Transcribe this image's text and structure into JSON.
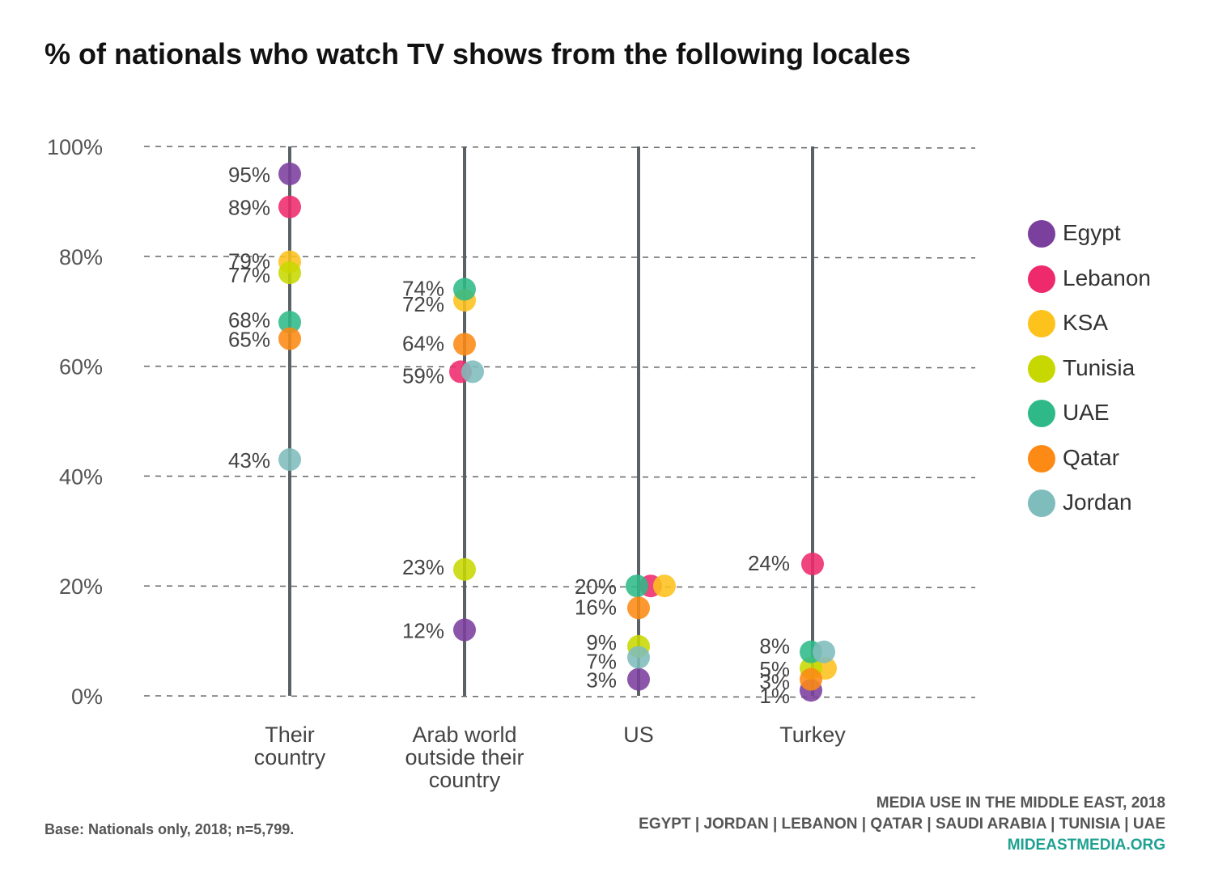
{
  "title": "% of nationals who watch TV shows from the following locales",
  "base_note": "Base: Nationals only, 2018; n=5,799.",
  "footer": {
    "line1": "MEDIA USE IN THE MIDDLE EAST, 2018",
    "line2": "EGYPT | JORDAN | LEBANON | QATAR | SAUDI ARABIA | TUNISIA | UAE",
    "line3": "MIDEASTMEDIA.ORG"
  },
  "legend": [
    {
      "name": "Egypt",
      "color": "#7b3f9e"
    },
    {
      "name": "Lebanon",
      "color": "#ee2a6c"
    },
    {
      "name": "KSA",
      "color": "#fdc21c"
    },
    {
      "name": "Tunisia",
      "color": "#c7d800"
    },
    {
      "name": "UAE",
      "color": "#2fb989"
    },
    {
      "name": "Qatar",
      "color": "#fd8a15"
    },
    {
      "name": "Jordan",
      "color": "#7fbcbc"
    }
  ],
  "chart_data": {
    "type": "scatter",
    "title": "% of nationals who watch TV shows from the following locales",
    "categories": [
      [
        "Their",
        "country"
      ],
      [
        "Arab world",
        "outside their",
        "country"
      ],
      [
        "US"
      ],
      [
        "Turkey"
      ]
    ],
    "ylim": [
      0,
      100
    ],
    "yticks": [
      "0%",
      "20%",
      "40%",
      "60%",
      "80%",
      "100%"
    ],
    "grid": true,
    "legend_position": "right",
    "series": [
      {
        "name": "Egypt",
        "values": [
          95,
          12,
          3,
          1
        ]
      },
      {
        "name": "Lebanon",
        "values": [
          89,
          59,
          20,
          24
        ]
      },
      {
        "name": "KSA",
        "values": [
          79,
          72,
          20,
          5
        ]
      },
      {
        "name": "Tunisia",
        "values": [
          77,
          23,
          9,
          5
        ]
      },
      {
        "name": "UAE",
        "values": [
          68,
          74,
          20,
          8
        ]
      },
      {
        "name": "Qatar",
        "values": [
          65,
          64,
          16,
          3
        ]
      },
      {
        "name": "Jordan",
        "values": [
          43,
          59,
          7,
          8
        ]
      }
    ],
    "value_labels": [
      [
        "95%",
        "89%",
        "79%",
        "77%",
        "68%",
        "65%",
        "43%"
      ],
      [
        "74%",
        "72%",
        "64%",
        "59%",
        "23%",
        "12%"
      ],
      [
        "20%",
        "16%",
        "9%",
        "7%",
        "3%"
      ],
      [
        "24%",
        "8%",
        "5%",
        "3%",
        "1%"
      ]
    ]
  }
}
